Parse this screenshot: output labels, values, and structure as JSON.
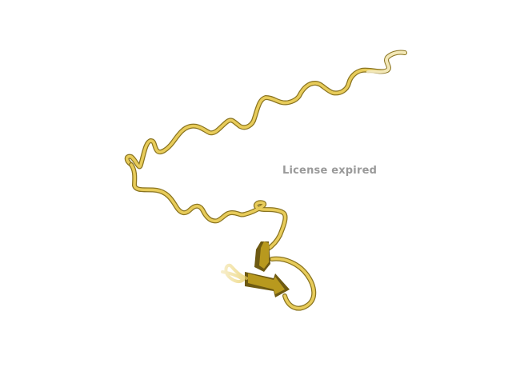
{
  "viewer": {
    "background_color": "#ffffff",
    "watermark_text": "License expired",
    "watermark_color": "#9a9a9a"
  },
  "molecule": {
    "representation": "cartoon-ribbon",
    "ribbon_color": "#e8cc5a",
    "ribbon_highlight": "#f6e49a",
    "ribbon_shadow": "#8a7420",
    "sheet_color": "#b8991e",
    "sheet_dark": "#6e5a12"
  }
}
